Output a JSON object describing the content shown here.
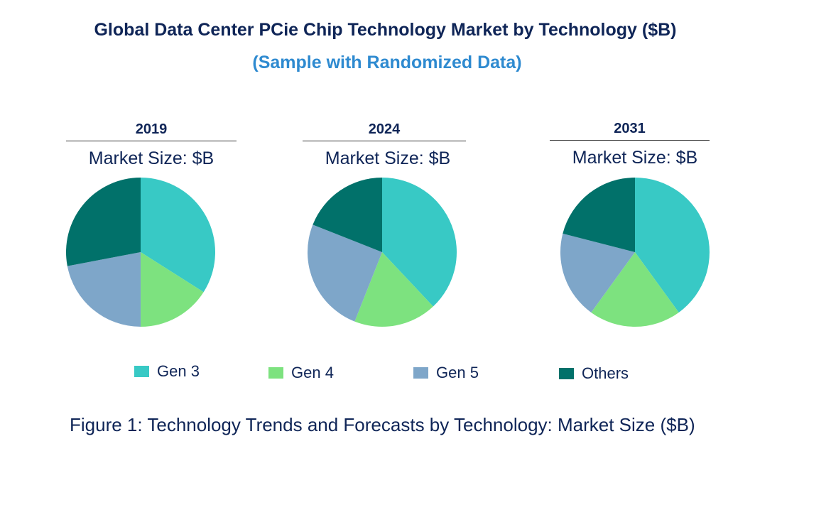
{
  "title": "Global Data Center PCie Chip Technology Market by Technology ($B)",
  "subtitle": "(Sample with Randomized Data)",
  "caption": "Figure 1: Technology Trends and Forecasts by Technology: Market Size ($B)",
  "chart_data": [
    {
      "type": "pie",
      "year": "2019",
      "subtitle": "Market Size: $B",
      "categories": [
        "Gen 3",
        "Gen 4",
        "Gen 5",
        "Others"
      ],
      "values": [
        34,
        16,
        22,
        28
      ],
      "colors": [
        "#38c9c5",
        "#7de27f",
        "#7ea6c9",
        "#01716a"
      ]
    },
    {
      "type": "pie",
      "year": "2024",
      "subtitle": "Market Size: $B",
      "categories": [
        "Gen 3",
        "Gen 4",
        "Gen 5",
        "Others"
      ],
      "values": [
        38,
        18,
        25,
        19
      ],
      "colors": [
        "#38c9c5",
        "#7de27f",
        "#7ea6c9",
        "#01716a"
      ]
    },
    {
      "type": "pie",
      "year": "2031",
      "subtitle": "Market Size: $B",
      "categories": [
        "Gen 3",
        "Gen 4",
        "Gen 5",
        "Others"
      ],
      "values": [
        40,
        20,
        19,
        21
      ],
      "colors": [
        "#38c9c5",
        "#7de27f",
        "#7ea6c9",
        "#01716a"
      ]
    }
  ],
  "legend": {
    "placement": "bottom",
    "items": [
      {
        "label": "Gen 3",
        "color": "#38c9c5"
      },
      {
        "label": "Gen 4",
        "color": "#7de27f"
      },
      {
        "label": "Gen 5",
        "color": "#7ea6c9"
      },
      {
        "label": "Others",
        "color": "#01716a"
      }
    ]
  }
}
